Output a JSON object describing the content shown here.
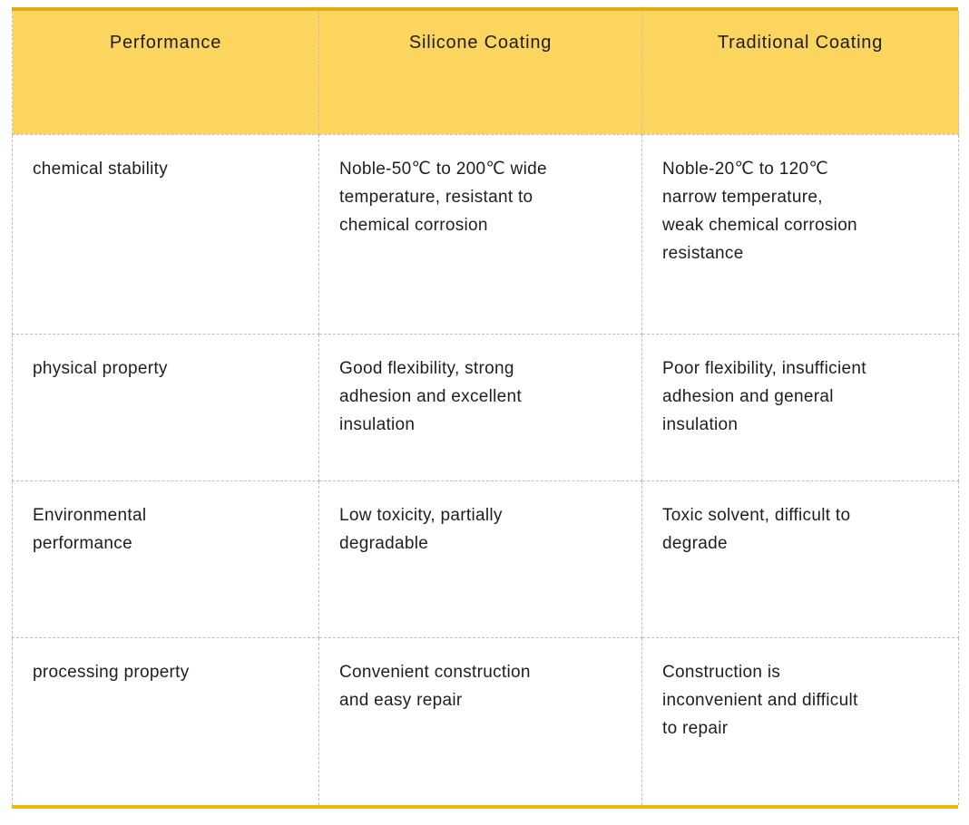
{
  "table": {
    "header": [
      "Performance",
      "Silicone Coating",
      "Traditional Coating"
    ],
    "rows": [
      [
        "chemical stability",
        "Noble-50℃ to 200℃ wide\ntemperature, resistant to\nchemical corrosion",
        "Noble-20℃ to 120℃\nnarrow temperature,\nweak chemical corrosion\nresistance"
      ],
      [
        "physical property",
        "Good flexibility, strong\nadhesion and excellent\ninsulation",
        "Poor flexibility, insufficient\nadhesion and general\ninsulation"
      ],
      [
        "Environmental\nperformance",
        "Low toxicity, partially\ndegradable",
        "Toxic solvent, difficult to\ndegrade"
      ],
      [
        "processing property",
        "Convenient construction\nand easy repair",
        "Construction is\ninconvenient and difficult\nto repair"
      ]
    ]
  },
  "colors": {
    "header_background": "#fcd55f",
    "accent_top": "#e3aa10",
    "accent_bottom": "#ecb80d",
    "cell_border": "#bfbfbf",
    "text": "#1e1e1e"
  }
}
